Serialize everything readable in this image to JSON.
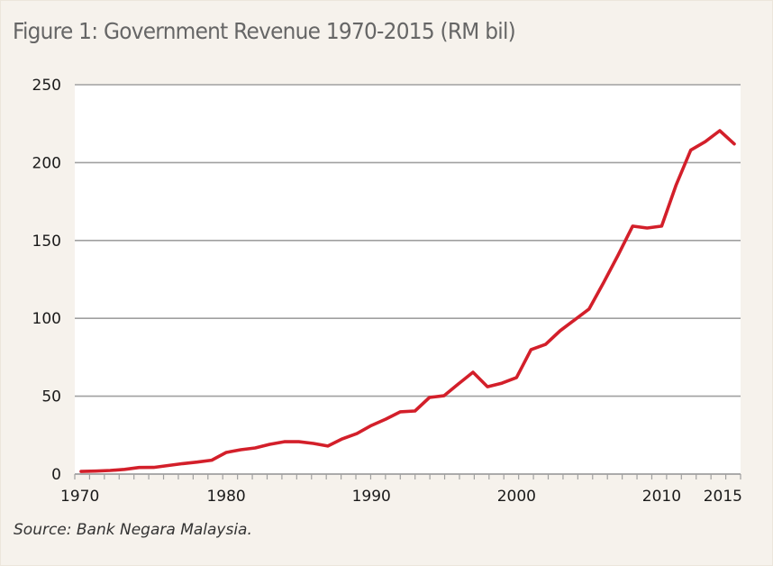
{
  "figure": {
    "title": "Figure 1: Government Revenue 1970-2015 (RM bil)",
    "source": "Source: Bank Negara Malaysia."
  },
  "colors": {
    "background": "#f6f2ec",
    "plot_background": "#ffffff",
    "line": "#d31f2a",
    "grid": "#a0a0a0",
    "title": "#666666"
  },
  "chart_data": {
    "type": "line",
    "title": "Figure 1: Government Revenue 1970-2015 (RM bil)",
    "xlabel": "",
    "ylabel": "",
    "xlim": [
      1970,
      2015
    ],
    "ylim": [
      0,
      250
    ],
    "grid": true,
    "legend": "none",
    "yticks": [
      0,
      50,
      100,
      150,
      200,
      250
    ],
    "ytick_labels": [
      "0",
      "50",
      "100",
      "150",
      "200",
      "250"
    ],
    "xticks_minor_every": 1,
    "xtick_labels": [
      {
        "value": 1970,
        "label": "1970"
      },
      {
        "value": 1980,
        "label": "1980"
      },
      {
        "value": 1990,
        "label": "1990"
      },
      {
        "value": 2000,
        "label": "2000"
      },
      {
        "value": 2010,
        "label": "2010"
      },
      {
        "value": 2015,
        "label": "2015"
      }
    ],
    "x": [
      1970,
      1971,
      1972,
      1973,
      1974,
      1975,
      1976,
      1977,
      1978,
      1979,
      1980,
      1981,
      1982,
      1983,
      1984,
      1985,
      1986,
      1987,
      1988,
      1989,
      1990,
      1991,
      1992,
      1993,
      1994,
      1995,
      1996,
      1997,
      1998,
      1999,
      2000,
      2001,
      2002,
      2003,
      2004,
      2005,
      2006,
      2007,
      2008,
      2009,
      2010,
      2011,
      2012,
      2013,
      2014,
      2015
    ],
    "series": [
      {
        "name": "Government Revenue (RM bil)",
        "values": [
          1.7,
          1.9,
          2.3,
          3.0,
          4.2,
          4.3,
          5.5,
          6.7,
          7.7,
          8.9,
          13.9,
          15.6,
          16.8,
          19.1,
          20.8,
          20.8,
          19.7,
          18.0,
          22.6,
          26.0,
          31.2,
          35.3,
          40.0,
          40.5,
          49.2,
          50.3,
          57.9,
          65.4,
          56.1,
          58.4,
          62.0,
          79.9,
          83.3,
          92.0,
          99.0,
          106.0,
          123.0,
          140.6,
          159.2,
          158.0,
          159.2,
          185.8,
          208.0,
          213.4,
          220.5,
          212.0
        ]
      }
    ]
  }
}
